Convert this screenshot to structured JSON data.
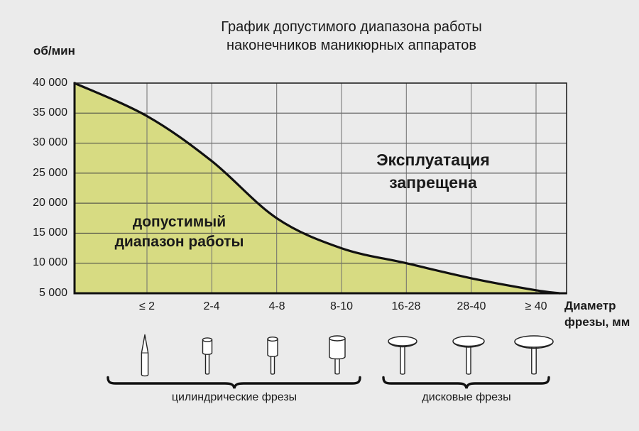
{
  "title": {
    "line1": "График допустимого диапазона работы",
    "line2": "наконечников маникюрных аппаратов"
  },
  "chart": {
    "y_axis_label": "об/мин",
    "x_axis_label_line1": "Диаметр",
    "x_axis_label_line2": "фрезы, мм",
    "y_ticks": [
      "40 000",
      "35 000",
      "30 000",
      "25 000",
      "20 000",
      "15 000",
      "10 000",
      "5 000"
    ],
    "x_ticks": [
      "≤ 2",
      "2-4",
      "4-8",
      "8-10",
      "16-28",
      "28-40",
      "≥ 40"
    ],
    "allowed_label_line1": "допустимый",
    "allowed_label_line2": "диапазон работы",
    "forbidden_label_line1": "Эксплуатация",
    "forbidden_label_line2": "запрещена"
  },
  "groups": {
    "cylindrical_label": "цилиндрические фрезы",
    "disc_label": "дисковые фрезы"
  },
  "icons": {
    "cylindrical": [
      "needle-bur-icon",
      "small-cylinder-bur-icon",
      "medium-cylinder-bur-icon",
      "large-cylinder-bur-icon"
    ],
    "disc": [
      "small-disc-bur-icon",
      "medium-disc-bur-icon",
      "large-disc-bur-icon"
    ]
  },
  "colors": {
    "background": "#ebebeb",
    "allowed_fill": "#d7db82",
    "curve": "#111111",
    "h_grid": "#3f3f3f",
    "v_grid": "#6f6f6f",
    "text": "#1a1a1a"
  },
  "chart_data": {
    "type": "area",
    "title": "График допустимого диапазона работы наконечников маникюрных аппаратов",
    "xlabel": "Диаметр фрезы, мм",
    "ylabel": "об/мин",
    "x_categories": [
      "≤ 2",
      "2-4",
      "4-8",
      "8-10",
      "16-28",
      "28-40",
      "≥ 40"
    ],
    "ylim": [
      5000,
      40000
    ],
    "y_tick_values": [
      40000,
      35000,
      30000,
      25000,
      20000,
      15000,
      10000,
      5000
    ],
    "grid": true,
    "curve": {
      "name": "граница допустимого диапазона (max об/мин)",
      "points": [
        {
          "x": "axis-start",
          "rpm": 40000
        },
        {
          "x": "≤ 2",
          "rpm": 34500
        },
        {
          "x": "2-4",
          "rpm": 27000
        },
        {
          "x": "4-8",
          "rpm": 17500
        },
        {
          "x": "8-10",
          "rpm": 12500
        },
        {
          "x": "16-28",
          "rpm": 10000
        },
        {
          "x": "28-40",
          "rpm": 7500
        },
        {
          "x": "≥ 40",
          "rpm": 5500
        },
        {
          "x": "axis-end",
          "rpm": 5000
        }
      ]
    },
    "regions": [
      {
        "name": "допустимый диапазон работы",
        "position": "below-curve",
        "fill": "#d7db82"
      },
      {
        "name": "Эксплуатация запрещена",
        "position": "above-curve",
        "fill": "none"
      }
    ],
    "category_groups": [
      {
        "label": "цилиндрические фрезы",
        "categories": [
          "≤ 2",
          "2-4",
          "4-8",
          "8-10"
        ]
      },
      {
        "label": "дисковые фрезы",
        "categories": [
          "16-28",
          "28-40",
          "≥ 40"
        ]
      }
    ]
  }
}
